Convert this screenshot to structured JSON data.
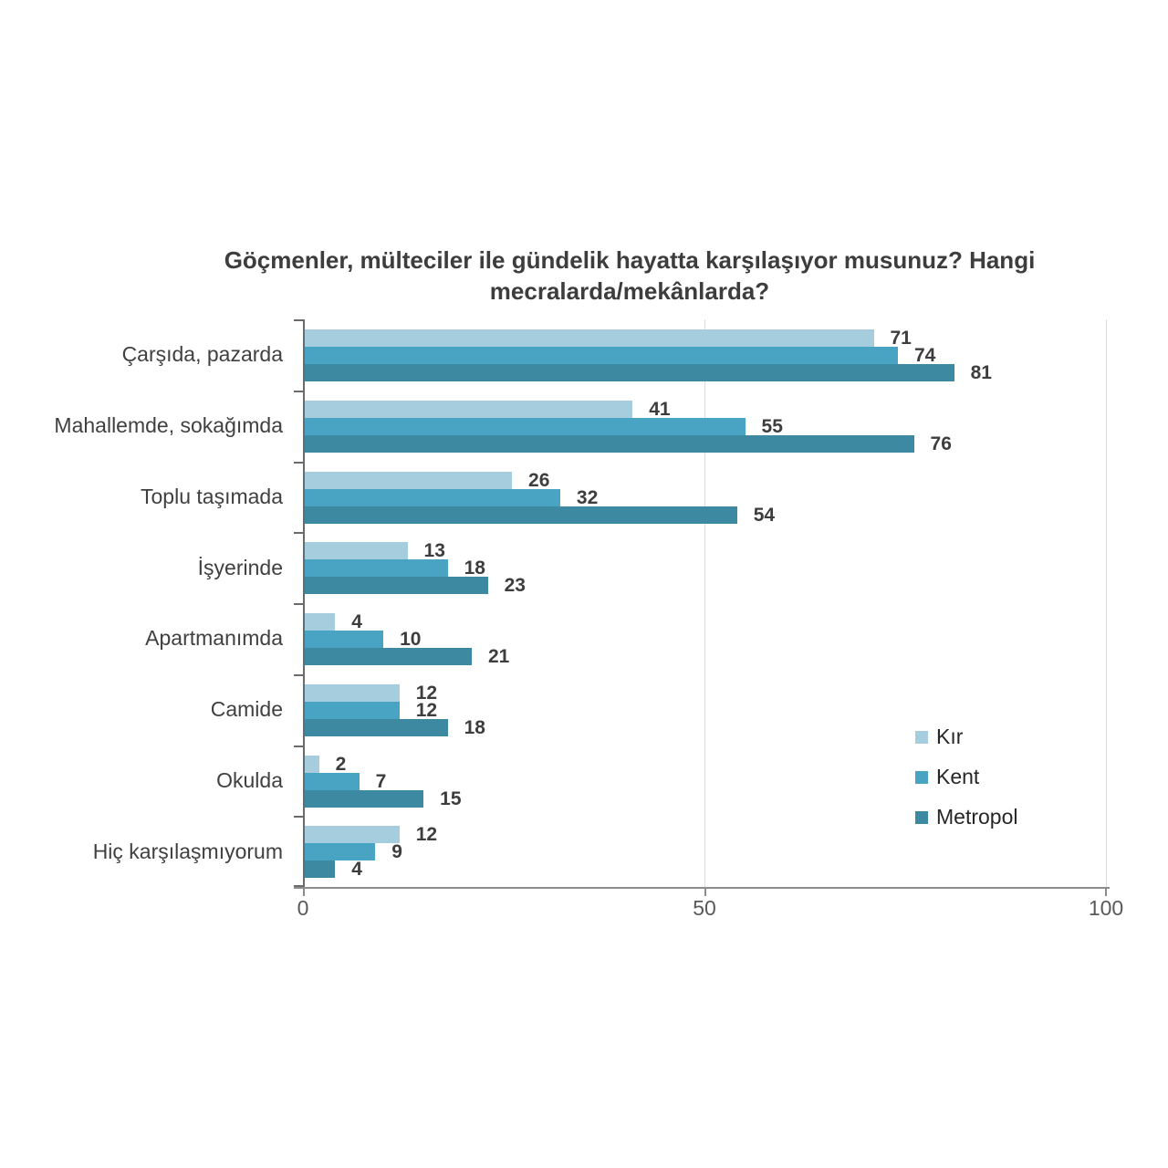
{
  "title": "Göçmenler, mülteciler ile gündelik hayatta karşılaşıyor musunuz? Hangi mecralarda/mekânlarda?",
  "chart_data": {
    "type": "bar",
    "orientation": "horizontal",
    "title": "Göçmenler, mülteciler ile gündelik hayatta karşılaşıyor musunuz? Hangi mecralarda/mekânlarda?",
    "categories": [
      "Çarşıda, pazarda",
      "Mahallemde, sokağımda",
      "Toplu taşımada",
      "İşyerinde",
      "Apartmanımda",
      "Camide",
      "Okulda",
      "Hiç karşılaşmıyorum"
    ],
    "series": [
      {
        "name": "Kır",
        "color": "#a6cdde",
        "values": [
          71,
          41,
          26,
          13,
          4,
          12,
          2,
          12
        ]
      },
      {
        "name": "Kent",
        "color": "#49a4c3",
        "values": [
          74,
          55,
          32,
          18,
          10,
          12,
          7,
          9
        ]
      },
      {
        "name": "Metropol",
        "color": "#3d89a1",
        "values": [
          81,
          76,
          54,
          23,
          21,
          18,
          15,
          4
        ]
      }
    ],
    "xlim": [
      0,
      100
    ],
    "x_tick_labels": [
      "0",
      "50",
      "100"
    ],
    "grid": "vertical gridlines at 50 and 100",
    "legend_position": "right-center",
    "value_labels": "shown at end of each bar"
  },
  "colors": {
    "kir": "#a6cdde",
    "kent": "#49a4c3",
    "metropol": "#3d89a1",
    "title_text": "#3d3d3d",
    "value_text": "#3d3d3d",
    "category_text": "#404040",
    "axis_tick_text": "#595959",
    "axis_line": "#8c8c8c",
    "gridline": "#dcdcdc"
  }
}
